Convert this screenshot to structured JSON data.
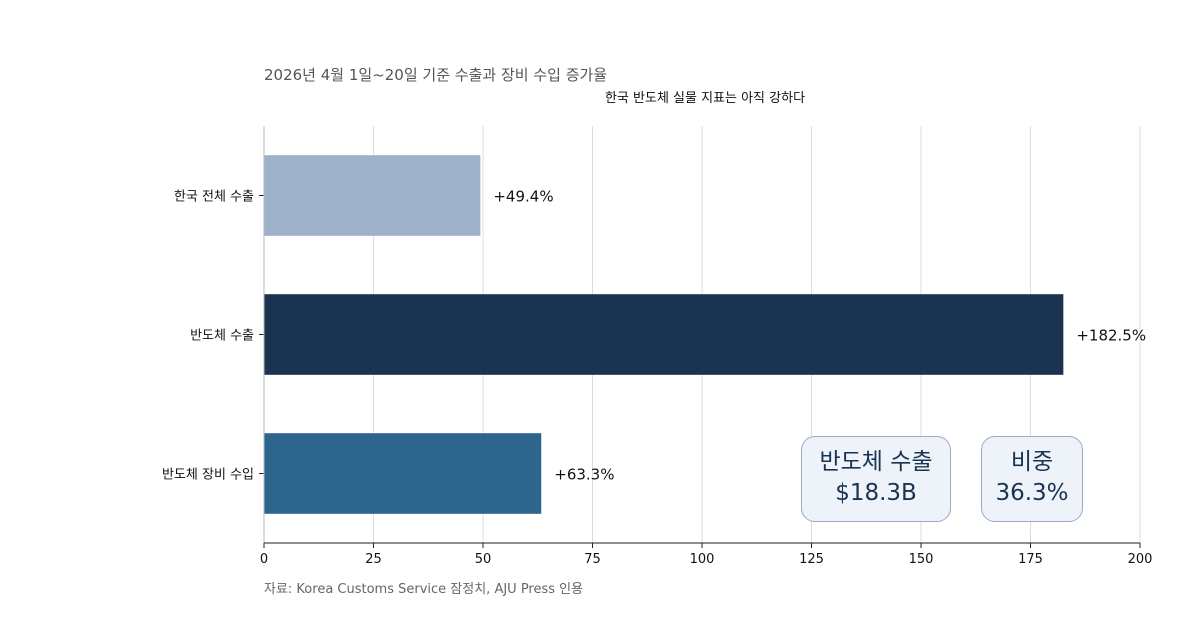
{
  "title": "2026년 4월 1일~20일 기준 수출과 장비 수입 증가율",
  "subtitle": "한국 반도체 실물 지표는 아직 강하다",
  "source": "자료: Korea Customs Service 잠정치, AJU Press 인용",
  "callouts": [
    {
      "line1": "반도체 수출",
      "line2": "$18.3B"
    },
    {
      "line1": "비중",
      "line2": "36.3%"
    }
  ],
  "colors": {
    "bar1": "#9db2c8",
    "bar2": "#1a3350",
    "bar3": "#2e658f",
    "grid": "#dddddd"
  },
  "chart_data": {
    "type": "bar",
    "orientation": "horizontal",
    "categories": [
      "한국 전체 수출",
      "반도체 수출",
      "반도체 장비 수입"
    ],
    "values": [
      49.4,
      182.5,
      63.3
    ],
    "value_labels": [
      "+49.4%",
      "+182.5%",
      "+63.3%"
    ],
    "xlim": [
      0,
      200
    ],
    "xticks": [
      0,
      25,
      50,
      75,
      100,
      125,
      150,
      175,
      200
    ],
    "grid": "vertical",
    "legend": "none"
  }
}
